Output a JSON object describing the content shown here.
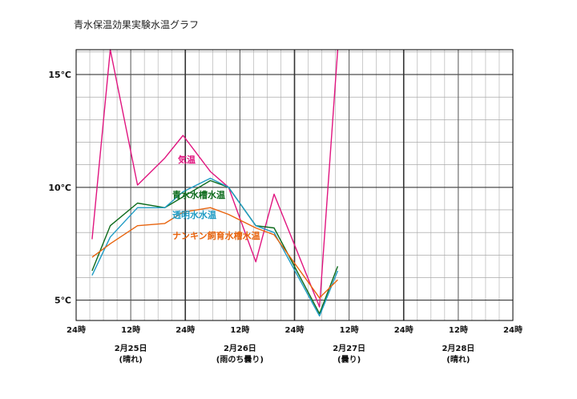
{
  "chart_data": {
    "type": "line",
    "title": "青水保温効果実験水温グラフ",
    "x_ticks": [
      "24時",
      "12時",
      "24時",
      "12時",
      "24時",
      "12時",
      "24時",
      "12時",
      "24時"
    ],
    "dates": [
      {
        "date": "2月25日",
        "weather": "(晴れ)"
      },
      {
        "date": "2月26日",
        "weather": "(雨のち曇り)"
      },
      {
        "date": "2月27日",
        "weather": "(曇り)"
      },
      {
        "date": "2月28日",
        "weather": "(晴れ)"
      }
    ],
    "y_ticks": [
      {
        "value": 5,
        "label": "5℃"
      },
      {
        "value": 10,
        "label": "10℃"
      },
      {
        "value": 15,
        "label": "15℃"
      }
    ],
    "xlim": [
      0,
      96
    ],
    "ylim": [
      4.1,
      16.1
    ],
    "grid": true,
    "series": [
      {
        "name": "気温",
        "color": "#e0157f",
        "x": [
          3.5,
          7.5,
          13.5,
          19.5,
          23.5,
          29.5,
          33.5,
          39.5,
          43.5,
          53.5,
          57.5
        ],
        "y": [
          7.7,
          16.1,
          10.1,
          11.3,
          12.3,
          10.7,
          10.0,
          6.7,
          9.7,
          4.7,
          16.1
        ]
      },
      {
        "name": "青水水槽水温",
        "color": "#0d6b1c",
        "x": [
          3.5,
          7.5,
          13.5,
          19.5,
          29.5,
          33.5,
          39.5,
          43.5,
          53.5,
          57.5
        ],
        "y": [
          6.3,
          8.3,
          9.3,
          9.1,
          10.3,
          10.0,
          8.3,
          8.2,
          4.4,
          6.5
        ]
      },
      {
        "name": "透明水水温",
        "color": "#1e9bc4",
        "x": [
          3.5,
          7.5,
          13.5,
          19.5,
          23.5,
          29.5,
          33.5,
          39.5,
          43.5,
          53.5,
          57.5
        ],
        "y": [
          6.1,
          7.8,
          9.1,
          9.1,
          9.8,
          10.4,
          10.0,
          8.3,
          8.0,
          4.3,
          6.3
        ]
      },
      {
        "name": "ナンキン飼育水槽水温",
        "color": "#e8640e",
        "x": [
          3.5,
          7.5,
          13.5,
          19.5,
          23.5,
          29.5,
          33.5,
          39.5,
          43.5,
          53.5,
          57.5
        ],
        "y": [
          6.9,
          7.5,
          8.3,
          8.4,
          8.9,
          9.1,
          8.8,
          8.2,
          7.9,
          5.1,
          5.9
        ]
      }
    ]
  }
}
